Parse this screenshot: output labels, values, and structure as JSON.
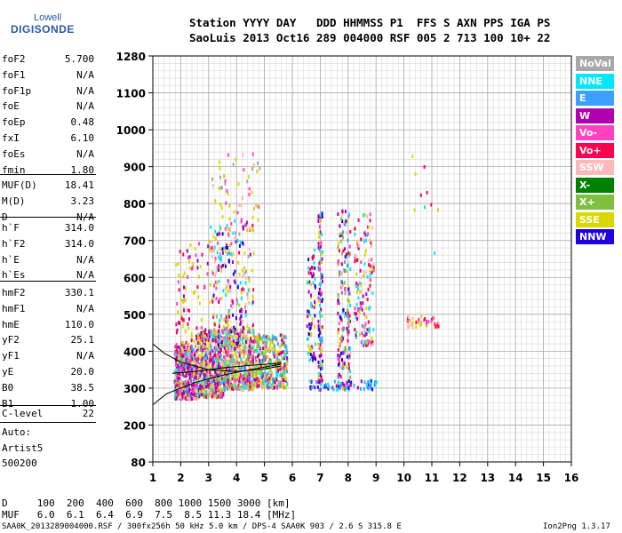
{
  "logo": {
    "line1": "Lowell",
    "line2": "DIGISONDE"
  },
  "header": {
    "line1": "Station YYYY DAY   DDD HHMMSS P1  FFS S AXN PPS IGA PS",
    "line2": "SaoLuis 2013 Oct16 289 004000 RSF 005 2 713 100 10+ 22"
  },
  "params_a": [
    {
      "k": "foF2",
      "v": "5.700"
    },
    {
      "k": "foF1",
      "v": "N/A"
    },
    {
      "k": "foF1p",
      "v": "N/A"
    },
    {
      "k": "foE",
      "v": "N/A"
    },
    {
      "k": "foEp",
      "v": "0.48"
    },
    {
      "k": "fxI",
      "v": "6.10"
    },
    {
      "k": "foEs",
      "v": "N/A"
    },
    {
      "k": "fmin",
      "v": "1.80"
    }
  ],
  "params_b": [
    {
      "k": "MUF(D)",
      "v": "18.41"
    },
    {
      "k": "M(D)",
      "v": "3.23"
    },
    {
      "k": "D",
      "v": "N/A"
    }
  ],
  "params_c": [
    {
      "k": "h`F",
      "v": "314.0"
    },
    {
      "k": "h`F2",
      "v": "314.0"
    },
    {
      "k": "h`E",
      "v": "N/A"
    },
    {
      "k": "h`Es",
      "v": "N/A"
    }
  ],
  "params_d": [
    {
      "k": "hmF2",
      "v": "330.1"
    },
    {
      "k": "hmF1",
      "v": "N/A"
    },
    {
      "k": "hmE",
      "v": "110.0"
    },
    {
      "k": "yF2",
      "v": "25.1"
    },
    {
      "k": "yF1",
      "v": "N/A"
    },
    {
      "k": "yE",
      "v": "20.0"
    },
    {
      "k": "B0",
      "v": "38.5"
    },
    {
      "k": "B1",
      "v": "1.00"
    }
  ],
  "clevel": {
    "k": "C-level",
    "v": "22"
  },
  "auto": {
    "line1": "Auto:",
    "line2": "Artist5",
    "line3": "500200"
  },
  "bottom": {
    "d_row": "D     100  200  400  600  800 1000 1500 3000 [km]",
    "muf_row": "MUF   6.0  6.1  6.4  6.9  7.5  8.5 11.3 18.4 [MHz]",
    "footer": "SAA0K_2013289004000.RSF / 300fx256h 50 kHz 5.0 km / DPS-4 SAA0K 903 / 2.6 S 315.8 E",
    "version": "Ion2Png 1.3.17"
  },
  "legend": [
    {
      "label": "NoVal",
      "color": "#a8a8a8"
    },
    {
      "label": "NNE",
      "color": "#00e8ff"
    },
    {
      "label": "E",
      "color": "#3ba0ff"
    },
    {
      "label": "W",
      "color": "#b000b0"
    },
    {
      "label": "Vo-",
      "color": "#ff40c0"
    },
    {
      "label": "Vo+",
      "color": "#ff0050"
    },
    {
      "label": "SSW",
      "color": "#ffb8b8"
    },
    {
      "label": "X-",
      "color": "#008000"
    },
    {
      "label": "X+",
      "color": "#80c040"
    },
    {
      "label": "SSE",
      "color": "#d8d800"
    },
    {
      "label": "NNW",
      "color": "#2000e0"
    }
  ],
  "chart_data": {
    "type": "scatter",
    "xlim": [
      1,
      16
    ],
    "ylim": [
      80,
      1280
    ],
    "x_ticks": [
      "1",
      "2",
      "3",
      "4",
      "5",
      "6",
      "7",
      "8",
      "9",
      "10",
      "11",
      "12",
      "13",
      "14",
      "15",
      "16"
    ],
    "y_ticks": [
      "80",
      "200",
      "300",
      "400",
      "500",
      "600",
      "700",
      "800",
      "900",
      "1000",
      "1100",
      "1280"
    ],
    "grid": true,
    "legend_position": "right",
    "clusters": [
      {
        "x": [
          1.75,
          2.6
        ],
        "y": [
          275,
          420
        ],
        "n": 520,
        "colors": [
          3,
          3,
          3,
          5,
          4,
          9,
          1,
          2,
          6,
          8
        ]
      },
      {
        "x": [
          2.6,
          3.5
        ],
        "y": [
          280,
          460
        ],
        "n": 480,
        "colors": [
          3,
          3,
          5,
          4,
          9,
          9,
          1,
          2,
          8,
          6
        ]
      },
      {
        "x": [
          3.5,
          4.6
        ],
        "y": [
          300,
          470
        ],
        "n": 460,
        "colors": [
          3,
          5,
          4,
          9,
          9,
          1,
          2,
          8,
          6,
          0
        ]
      },
      {
        "x": [
          4.6,
          5.8
        ],
        "y": [
          305,
          450
        ],
        "n": 360,
        "colors": [
          3,
          9,
          9,
          5,
          4,
          8,
          1,
          2
        ]
      },
      {
        "x": [
          1.8,
          3.0
        ],
        "y": [
          420,
          700
        ],
        "n": 90,
        "colors": [
          9,
          9,
          5,
          4,
          3
        ]
      },
      {
        "x": [
          3.0,
          4.6
        ],
        "y": [
          420,
          760
        ],
        "n": 260,
        "colors": [
          5,
          4,
          3,
          9,
          9,
          1,
          0,
          6,
          10
        ]
      },
      {
        "x": [
          3.0,
          4.8
        ],
        "y": [
          760,
          940
        ],
        "n": 50,
        "colors": [
          9,
          9,
          6,
          4,
          0
        ]
      },
      {
        "x": [
          6.5,
          6.8
        ],
        "y": [
          380,
          680
        ],
        "n": 80,
        "colors": [
          9,
          5,
          3,
          1,
          10
        ]
      },
      {
        "x": [
          6.9,
          7.05
        ],
        "y": [
          320,
          780
        ],
        "n": 110,
        "colors": [
          5,
          3,
          2,
          1,
          10,
          9,
          4
        ]
      },
      {
        "x": [
          7.6,
          8.05
        ],
        "y": [
          300,
          790
        ],
        "n": 190,
        "colors": [
          5,
          3,
          2,
          1,
          10,
          9,
          4,
          6,
          8
        ]
      },
      {
        "x": [
          8.2,
          8.9
        ],
        "y": [
          420,
          780
        ],
        "n": 140,
        "colors": [
          5,
          3,
          4,
          9,
          6,
          1
        ]
      },
      {
        "x": [
          6.6,
          9.0
        ],
        "y": [
          300,
          325
        ],
        "n": 70,
        "colors": [
          10,
          2,
          3,
          1
        ]
      },
      {
        "x": [
          10.0,
          11.3
        ],
        "y": [
          470,
          500
        ],
        "n": 45,
        "colors": [
          5,
          4,
          9,
          6
        ]
      },
      {
        "x": [
          10.1,
          11.3
        ],
        "y": [
          660,
          1000
        ],
        "n": 10,
        "colors": [
          9,
          5,
          1
        ]
      }
    ],
    "trace_lines": [
      {
        "points": [
          [
            1.0,
            255
          ],
          [
            1.5,
            285
          ],
          [
            2.5,
            315
          ],
          [
            3.5,
            335
          ],
          [
            4.5,
            350
          ],
          [
            5.6,
            365
          ]
        ]
      },
      {
        "points": [
          [
            1.0,
            420
          ],
          [
            1.4,
            395
          ],
          [
            2.0,
            370
          ],
          [
            3.0,
            350
          ],
          [
            4.0,
            345
          ],
          [
            5.0,
            352
          ],
          [
            5.6,
            360
          ]
        ]
      },
      {
        "points": [
          [
            1.7,
            340
          ],
          [
            2.5,
            345
          ],
          [
            3.5,
            355
          ],
          [
            4.5,
            362
          ],
          [
            5.6,
            368
          ]
        ]
      }
    ]
  }
}
